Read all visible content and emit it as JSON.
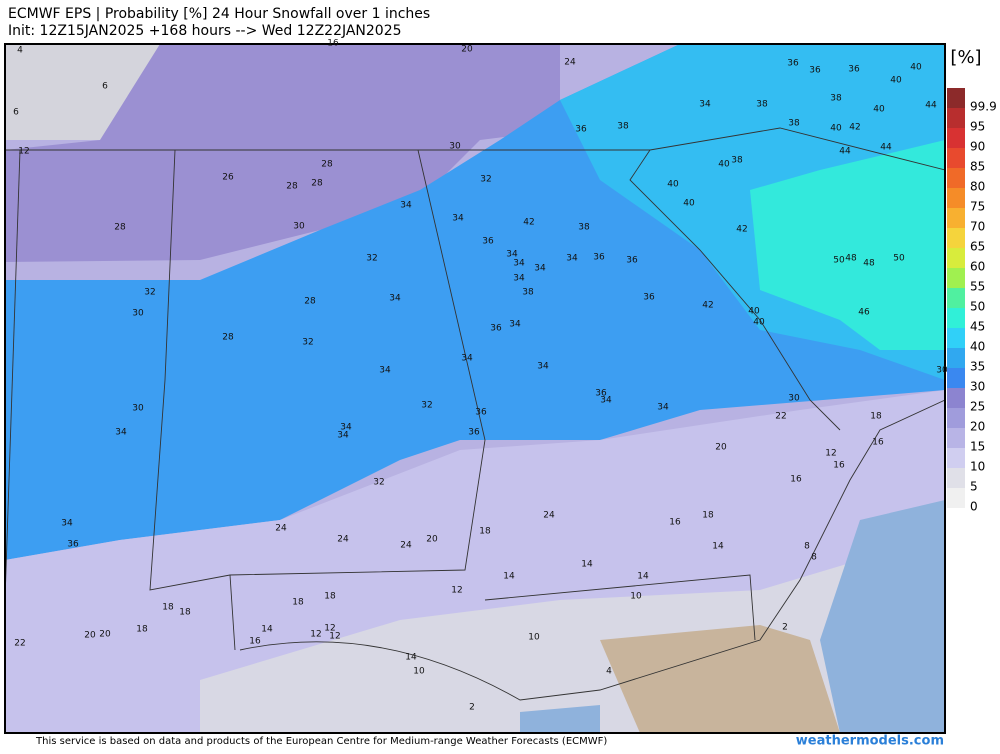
{
  "header": {
    "title": "ECMWF EPS | Probability [%] 24 Hour Snowfall over 1 inches",
    "subtitle": "Init: 12Z15JAN2025 +168 hours --> Wed 12Z22JAN2025"
  },
  "legend": {
    "unit": "[%]",
    "levels": [
      {
        "value": 99.9,
        "color": "#8c2a2a"
      },
      {
        "value": 95,
        "color": "#b82e2e"
      },
      {
        "value": 90,
        "color": "#d83232"
      },
      {
        "value": 85,
        "color": "#e84a2e"
      },
      {
        "value": 80,
        "color": "#f06a28"
      },
      {
        "value": 75,
        "color": "#f58c28"
      },
      {
        "value": 70,
        "color": "#f8b030"
      },
      {
        "value": 65,
        "color": "#f5d43c"
      },
      {
        "value": 60,
        "color": "#d8ec3c"
      },
      {
        "value": 55,
        "color": "#a0f050"
      },
      {
        "value": 50,
        "color": "#50f0a0"
      },
      {
        "value": 45,
        "color": "#30f0d8"
      },
      {
        "value": 40,
        "color": "#30d0f8"
      },
      {
        "value": 35,
        "color": "#30a8f0"
      },
      {
        "value": 30,
        "color": "#3a88f0"
      },
      {
        "value": 25,
        "color": "#8c84d0"
      },
      {
        "value": 20,
        "color": "#a09cdc"
      },
      {
        "value": 15,
        "color": "#b8b4e6"
      },
      {
        "value": 10,
        "color": "#d0cef0"
      },
      {
        "value": 5,
        "color": "#e0e0e8"
      },
      {
        "value": 0,
        "color": "#f0f0f0"
      }
    ]
  },
  "map": {
    "labels": [
      4,
      6,
      6,
      16,
      20,
      24,
      36,
      36,
      36,
      40,
      40,
      44,
      38,
      40,
      34,
      38,
      38,
      40,
      42,
      36,
      38,
      12,
      30,
      44,
      44,
      28,
      40,
      38,
      26,
      28,
      28,
      32,
      40,
      40,
      34,
      34,
      42,
      38,
      42,
      28,
      30,
      36,
      34,
      34,
      34,
      34,
      36,
      36,
      50,
      48,
      48,
      50,
      32,
      34,
      38,
      32,
      34,
      28,
      36,
      42,
      40,
      40,
      46,
      30,
      34,
      36,
      28,
      32,
      34,
      34,
      34,
      30,
      36,
      34,
      30,
      32,
      34,
      22,
      18,
      30,
      36,
      34,
      34,
      36,
      34,
      16,
      20,
      12,
      16,
      32,
      16,
      24,
      18,
      16,
      34,
      24,
      18,
      24,
      20,
      24,
      14,
      8,
      36,
      8,
      14,
      14,
      14,
      12,
      10,
      18,
      18,
      18,
      18,
      18,
      14,
      12,
      12,
      12,
      20,
      20,
      16,
      22,
      10,
      14,
      10,
      4,
      2,
      2
    ]
  },
  "footer": {
    "credit": "This service is based on data and products of the European Centre for Medium-range Weather Forecasts (ECMWF)",
    "brand": "weathermodels.com"
  }
}
